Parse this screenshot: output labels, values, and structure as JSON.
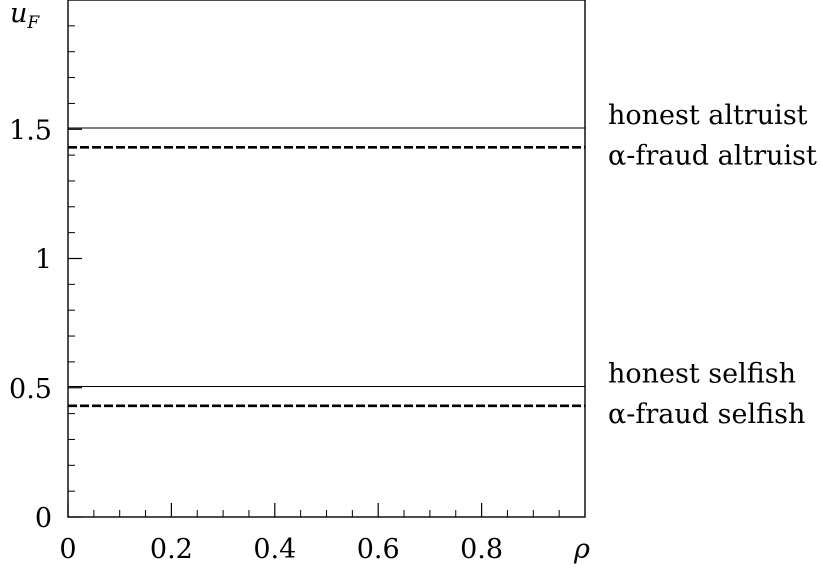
{
  "chart_data": {
    "type": "line",
    "title": "",
    "xlabel": "ρ",
    "ylabel": {
      "main": "u",
      "sub": "F"
    },
    "xlim": [
      0,
      1
    ],
    "ylim": [
      0,
      2
    ],
    "x_ticks_major": [
      0,
      0.2,
      0.4,
      0.6,
      0.8
    ],
    "x_tick_labels": [
      "0",
      "0.2",
      "0.4",
      "0.6",
      "0.8"
    ],
    "x_ticks_minor_step": 0.05,
    "y_ticks_major": [
      0,
      0.5,
      1,
      1.5
    ],
    "y_tick_labels": [
      "0",
      "0.5",
      "1",
      "1.5"
    ],
    "y_ticks_minor_step": 0.1,
    "grid": false,
    "legend": "right-of-plot",
    "series": [
      {
        "name": "honest altruist",
        "style": "solid",
        "x": [
          0,
          1
        ],
        "y": [
          1.505,
          1.505
        ]
      },
      {
        "name": "α-fraud altruist",
        "style": "dashed",
        "x": [
          0,
          1
        ],
        "y": [
          1.43,
          1.43
        ]
      },
      {
        "name": "honest selfish",
        "style": "solid",
        "x": [
          0,
          1
        ],
        "y": [
          0.505,
          0.505
        ]
      },
      {
        "name": "α-fraud selfish",
        "style": "dashed",
        "x": [
          0,
          1
        ],
        "y": [
          0.43,
          0.43
        ]
      }
    ]
  }
}
